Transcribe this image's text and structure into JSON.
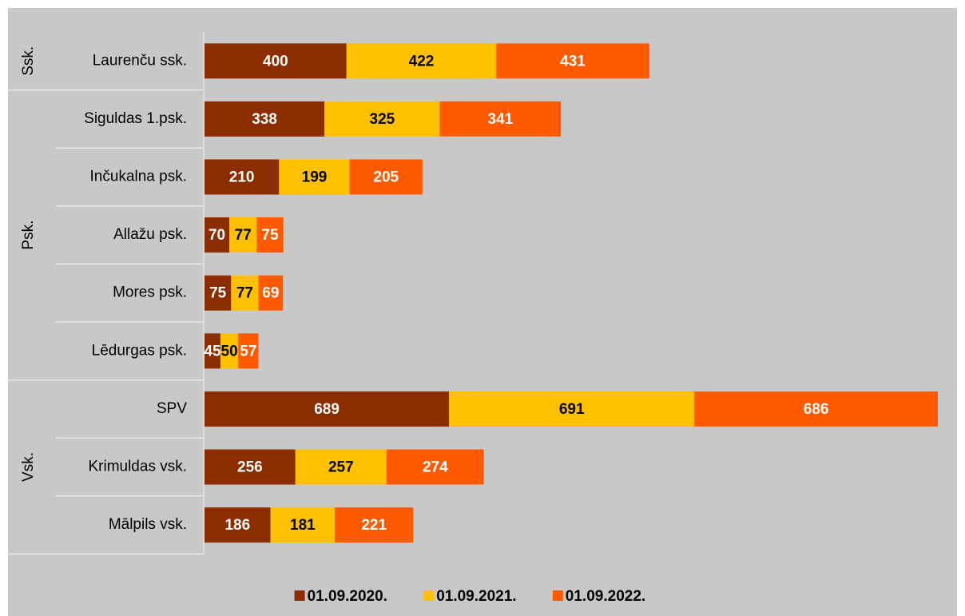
{
  "chart_data": {
    "type": "stacked-bar-horizontal",
    "groups": [
      {
        "name": "Ssk.",
        "categories": [
          "Laurenču ssk."
        ]
      },
      {
        "name": "Psk.",
        "categories": [
          "Siguldas 1.psk.",
          "Inčukalna psk.",
          "Allažu psk.",
          "Mores psk.",
          "Lēdurgas psk."
        ]
      },
      {
        "name": "Vsk.",
        "categories": [
          "SPV",
          "Krimuldas vsk.",
          "Mālpils vsk."
        ]
      }
    ],
    "series": [
      {
        "name": "01.09.2020.",
        "color": "#8c2d00",
        "label_color": "#ffffff",
        "values": [
          400,
          338,
          210,
          70,
          75,
          45,
          689,
          256,
          186
        ]
      },
      {
        "name": "01.09.2021.",
        "color": "#ffc000",
        "label_color": "#000000",
        "values": [
          422,
          325,
          199,
          77,
          77,
          50,
          691,
          257,
          181
        ]
      },
      {
        "name": "01.09.2022.",
        "color": "#ff5a00",
        "label_color": "#ffffff",
        "values": [
          431,
          341,
          205,
          75,
          69,
          57,
          686,
          274,
          221
        ]
      }
    ],
    "legend": "bottom"
  }
}
